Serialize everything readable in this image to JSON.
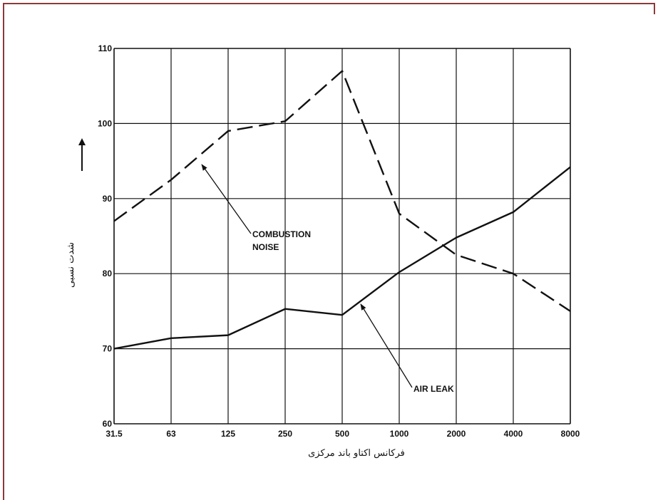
{
  "chart_data": {
    "type": "line",
    "xlabel": "فرکانس اکتاو باند مرکزی",
    "ylabel": "شدت نسبی",
    "ylim": [
      60,
      110
    ],
    "yticks": [
      60,
      70,
      80,
      90,
      100,
      110
    ],
    "categories": [
      "31.5",
      "63",
      "125",
      "250",
      "500",
      "1000",
      "2000",
      "4000",
      "8000"
    ],
    "grid": true,
    "series": [
      {
        "name": "COMBUSTION NOISE",
        "style": "dashed",
        "values": [
          87,
          92.5,
          99,
          100.3,
          107,
          88,
          82.5,
          80,
          75
        ]
      },
      {
        "name": "AIR LEAK",
        "style": "solid",
        "values": [
          70,
          71.4,
          71.8,
          75.3,
          74.5,
          80.2,
          84.8,
          88.2,
          94.2
        ]
      }
    ],
    "annotations": [
      {
        "lines": [
          "COMBUSTION",
          "NOISE"
        ],
        "series": "COMBUSTION NOISE"
      },
      {
        "lines": [
          "AIR LEAK"
        ],
        "series": "AIR LEAK"
      }
    ]
  },
  "colors": {
    "border": "#8b3a3a",
    "line": "#111111",
    "grid": "#111111"
  },
  "arrow_icon": "up-arrow-icon"
}
